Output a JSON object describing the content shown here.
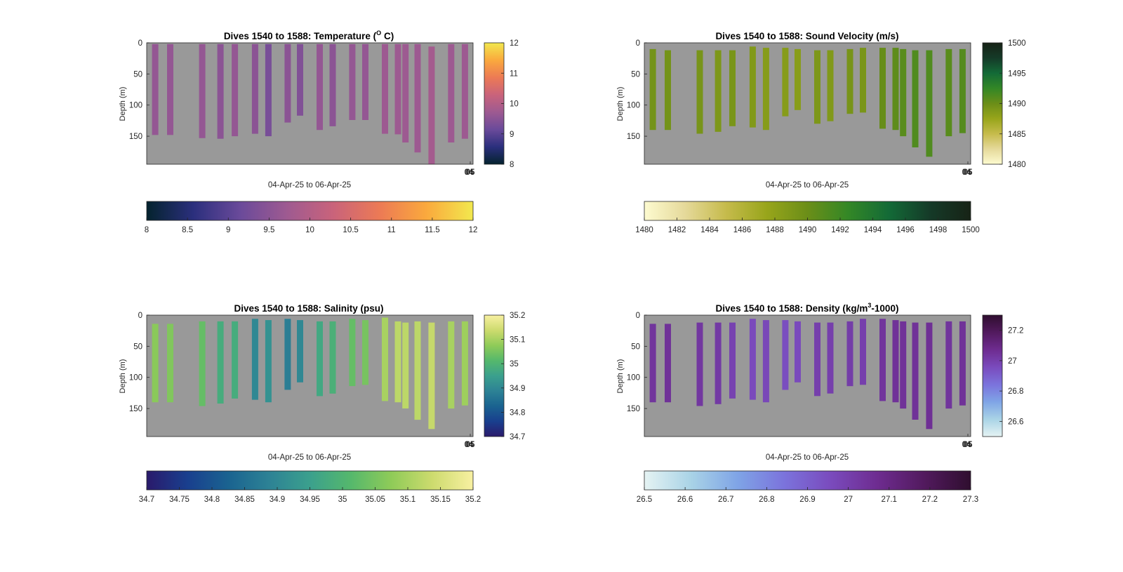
{
  "figure": {
    "background": "#ffffff",
    "plot_background": "#999999"
  },
  "chart_data": [
    {
      "type": "heatmap",
      "title": "Dives 1540 to 1588: Temperature (",
      "title_sup": "O",
      "title_end": " C)",
      "xlabel": "04-Apr-25 to 06-Apr-25",
      "ylabel": "Depth (m)",
      "x_tick_label": "04",
      "x_tick_label_overlap": "05",
      "ylim": [
        0,
        195
      ],
      "y_ticks": [
        "0",
        "50",
        "100",
        "150"
      ],
      "y_tick_values": [
        0,
        50,
        100,
        150
      ],
      "clim": [
        8,
        12
      ],
      "colormap": "thermal",
      "colorbar_side_ticks": [
        "8",
        "9",
        "10",
        "11",
        "12"
      ],
      "colorbar_side_values": [
        8,
        9,
        10,
        11,
        12
      ],
      "colorbar_bottom_ticks": [
        "8",
        "8.5",
        "9",
        "9.5",
        "10",
        "10.5",
        "11",
        "11.5",
        "12"
      ],
      "colorbar_bottom_values": [
        8,
        8.5,
        9,
        9.5,
        10,
        10.5,
        11,
        11.5,
        12
      ],
      "profiles": [
        {
          "x": 0.026,
          "top": 2,
          "bottom": 148,
          "value": 9.6
        },
        {
          "x": 0.072,
          "top": 2,
          "bottom": 148,
          "value": 9.6
        },
        {
          "x": 0.17,
          "top": 2,
          "bottom": 153,
          "value": 9.6
        },
        {
          "x": 0.226,
          "top": 2,
          "bottom": 154,
          "value": 9.5
        },
        {
          "x": 0.27,
          "top": 2,
          "bottom": 150,
          "value": 9.6
        },
        {
          "x": 0.332,
          "top": 2,
          "bottom": 146,
          "value": 9.5
        },
        {
          "x": 0.373,
          "top": 2,
          "bottom": 150,
          "value": 9.3
        },
        {
          "x": 0.432,
          "top": 2,
          "bottom": 128,
          "value": 9.5
        },
        {
          "x": 0.47,
          "top": 2,
          "bottom": 117,
          "value": 9.4
        },
        {
          "x": 0.53,
          "top": 2,
          "bottom": 140,
          "value": 9.6
        },
        {
          "x": 0.57,
          "top": 2,
          "bottom": 134,
          "value": 9.5
        },
        {
          "x": 0.63,
          "top": 2,
          "bottom": 124,
          "value": 9.6
        },
        {
          "x": 0.67,
          "top": 2,
          "bottom": 124,
          "value": 9.6
        },
        {
          "x": 0.73,
          "top": 2,
          "bottom": 146,
          "value": 9.7
        },
        {
          "x": 0.77,
          "top": 2,
          "bottom": 147,
          "value": 9.7
        },
        {
          "x": 0.793,
          "top": 2,
          "bottom": 160,
          "value": 9.7
        },
        {
          "x": 0.83,
          "top": 2,
          "bottom": 176,
          "value": 9.7
        },
        {
          "x": 0.873,
          "top": 6,
          "bottom": 195,
          "value": 9.8
        },
        {
          "x": 0.933,
          "top": 2,
          "bottom": 160,
          "value": 9.7
        },
        {
          "x": 0.975,
          "top": 2,
          "bottom": 154,
          "value": 9.7
        }
      ]
    },
    {
      "type": "heatmap",
      "title": "Dives 1540 to 1588: Sound Velocity (m/s)",
      "title_sup": "",
      "title_end": "",
      "xlabel": "04-Apr-25 to 06-Apr-25",
      "ylabel": "Depth (m)",
      "x_tick_label": "04",
      "x_tick_label_overlap": "05",
      "ylim": [
        0,
        195
      ],
      "y_ticks": [
        "0",
        "50",
        "100",
        "150"
      ],
      "y_tick_values": [
        0,
        50,
        100,
        150
      ],
      "clim": [
        1480,
        1500
      ],
      "colormap": "speed",
      "colorbar_side_ticks": [
        "1480",
        "1485",
        "1490",
        "1495",
        "1500"
      ],
      "colorbar_side_values": [
        1480,
        1485,
        1490,
        1495,
        1500
      ],
      "colorbar_bottom_ticks": [
        "1480",
        "1482",
        "1484",
        "1486",
        "1488",
        "1490",
        "1492",
        "1494",
        "1496",
        "1498",
        "1500"
      ],
      "colorbar_bottom_values": [
        1480,
        1482,
        1484,
        1486,
        1488,
        1490,
        1492,
        1494,
        1496,
        1498,
        1500
      ],
      "profiles": [
        {
          "x": 0.026,
          "top": 10,
          "bottom": 140,
          "value": 1489.5
        },
        {
          "x": 0.072,
          "top": 12,
          "bottom": 140,
          "value": 1489.5
        },
        {
          "x": 0.17,
          "top": 12,
          "bottom": 146,
          "value": 1489.3
        },
        {
          "x": 0.226,
          "top": 12,
          "bottom": 143,
          "value": 1489.0
        },
        {
          "x": 0.27,
          "top": 12,
          "bottom": 134,
          "value": 1489.2
        },
        {
          "x": 0.332,
          "top": 6,
          "bottom": 136,
          "value": 1488.8
        },
        {
          "x": 0.373,
          "top": 8,
          "bottom": 140,
          "value": 1488.5
        },
        {
          "x": 0.432,
          "top": 8,
          "bottom": 118,
          "value": 1488.5
        },
        {
          "x": 0.47,
          "top": 10,
          "bottom": 108,
          "value": 1488.4
        },
        {
          "x": 0.53,
          "top": 12,
          "bottom": 130,
          "value": 1489.0
        },
        {
          "x": 0.57,
          "top": 12,
          "bottom": 126,
          "value": 1488.8
        },
        {
          "x": 0.63,
          "top": 10,
          "bottom": 114,
          "value": 1489.3
        },
        {
          "x": 0.67,
          "top": 8,
          "bottom": 112,
          "value": 1489.2
        },
        {
          "x": 0.73,
          "top": 8,
          "bottom": 138,
          "value": 1490.2
        },
        {
          "x": 0.77,
          "top": 8,
          "bottom": 140,
          "value": 1490.6
        },
        {
          "x": 0.793,
          "top": 10,
          "bottom": 150,
          "value": 1490.8
        },
        {
          "x": 0.83,
          "top": 12,
          "bottom": 168,
          "value": 1491.2
        },
        {
          "x": 0.873,
          "top": 12,
          "bottom": 183,
          "value": 1491.2
        },
        {
          "x": 0.933,
          "top": 10,
          "bottom": 150,
          "value": 1490.8
        },
        {
          "x": 0.975,
          "top": 10,
          "bottom": 145,
          "value": 1491.0
        }
      ]
    },
    {
      "type": "heatmap",
      "title": "Dives 1540 to 1588: Salinity (psu)",
      "title_sup": "",
      "title_end": "",
      "xlabel": "04-Apr-25 to 06-Apr-25",
      "ylabel": "Depth (m)",
      "x_tick_label": "04",
      "x_tick_label_overlap": "05",
      "ylim": [
        0,
        195
      ],
      "y_ticks": [
        "0",
        "50",
        "100",
        "150"
      ],
      "y_tick_values": [
        0,
        50,
        100,
        150
      ],
      "clim": [
        34.7,
        35.2
      ],
      "colormap": "haline",
      "colorbar_side_ticks": [
        "34.7",
        "34.8",
        "34.9",
        "35",
        "35.1",
        "35.2"
      ],
      "colorbar_side_values": [
        34.7,
        34.8,
        34.9,
        35.0,
        35.1,
        35.2
      ],
      "colorbar_bottom_ticks": [
        "34.7",
        "34.75",
        "34.8",
        "34.85",
        "34.9",
        "34.95",
        "35",
        "35.05",
        "35.1",
        "35.15",
        "35.2"
      ],
      "colorbar_bottom_values": [
        34.7,
        34.75,
        34.8,
        34.85,
        34.9,
        34.95,
        35.0,
        35.05,
        35.1,
        35.15,
        35.2
      ],
      "profiles": [
        {
          "x": 0.026,
          "top": 14,
          "bottom": 140,
          "value": 35.07
        },
        {
          "x": 0.072,
          "top": 14,
          "bottom": 140,
          "value": 35.06
        },
        {
          "x": 0.17,
          "top": 10,
          "bottom": 146,
          "value": 35.03
        },
        {
          "x": 0.226,
          "top": 10,
          "bottom": 142,
          "value": 34.98
        },
        {
          "x": 0.27,
          "top": 10,
          "bottom": 134,
          "value": 34.98
        },
        {
          "x": 0.332,
          "top": 6,
          "bottom": 136,
          "value": 34.9
        },
        {
          "x": 0.373,
          "top": 8,
          "bottom": 140,
          "value": 34.92
        },
        {
          "x": 0.432,
          "top": 6,
          "bottom": 120,
          "value": 34.88
        },
        {
          "x": 0.47,
          "top": 8,
          "bottom": 108,
          "value": 34.9
        },
        {
          "x": 0.53,
          "top": 10,
          "bottom": 130,
          "value": 34.97
        },
        {
          "x": 0.57,
          "top": 10,
          "bottom": 126,
          "value": 34.99
        },
        {
          "x": 0.63,
          "top": 6,
          "bottom": 114,
          "value": 35.03
        },
        {
          "x": 0.67,
          "top": 8,
          "bottom": 112,
          "value": 35.05
        },
        {
          "x": 0.73,
          "top": 4,
          "bottom": 138,
          "value": 35.1
        },
        {
          "x": 0.77,
          "top": 10,
          "bottom": 140,
          "value": 35.12
        },
        {
          "x": 0.793,
          "top": 12,
          "bottom": 150,
          "value": 35.12
        },
        {
          "x": 0.83,
          "top": 10,
          "bottom": 168,
          "value": 35.12
        },
        {
          "x": 0.873,
          "top": 12,
          "bottom": 183,
          "value": 35.13
        },
        {
          "x": 0.933,
          "top": 10,
          "bottom": 150,
          "value": 35.1
        },
        {
          "x": 0.975,
          "top": 10,
          "bottom": 145,
          "value": 35.09
        }
      ]
    },
    {
      "type": "heatmap",
      "title": "Dives 1540 to 1588: Density (kg/m",
      "title_sup": "3",
      "title_end": "-1000)",
      "xlabel": "04-Apr-25 to 06-Apr-25",
      "ylabel": "Depth (m)",
      "x_tick_label": "04",
      "x_tick_label_overlap": "05",
      "ylim": [
        0,
        195
      ],
      "y_ticks": [
        "0",
        "50",
        "100",
        "150"
      ],
      "y_tick_values": [
        0,
        50,
        100,
        150
      ],
      "clim": [
        26.5,
        27.3
      ],
      "colormap": "dense",
      "colorbar_side_ticks": [
        "26.6",
        "26.8",
        "27",
        "27.2"
      ],
      "colorbar_side_values": [
        26.6,
        26.8,
        27.0,
        27.2
      ],
      "colorbar_bottom_ticks": [
        "26.5",
        "26.6",
        "26.7",
        "26.8",
        "26.9",
        "27",
        "27.1",
        "27.2",
        "27.3"
      ],
      "colorbar_bottom_values": [
        26.5,
        26.6,
        26.7,
        26.8,
        26.9,
        27.0,
        27.1,
        27.2,
        27.3
      ],
      "profiles": [
        {
          "x": 0.026,
          "top": 14,
          "bottom": 140,
          "value": 27.04
        },
        {
          "x": 0.072,
          "top": 14,
          "bottom": 140,
          "value": 27.05
        },
        {
          "x": 0.17,
          "top": 12,
          "bottom": 146,
          "value": 27.03
        },
        {
          "x": 0.226,
          "top": 12,
          "bottom": 143,
          "value": 27.02
        },
        {
          "x": 0.27,
          "top": 12,
          "bottom": 134,
          "value": 26.99
        },
        {
          "x": 0.332,
          "top": 6,
          "bottom": 136,
          "value": 26.96
        },
        {
          "x": 0.373,
          "top": 8,
          "bottom": 140,
          "value": 26.97
        },
        {
          "x": 0.432,
          "top": 8,
          "bottom": 120,
          "value": 26.95
        },
        {
          "x": 0.47,
          "top": 10,
          "bottom": 108,
          "value": 26.96
        },
        {
          "x": 0.53,
          "top": 12,
          "bottom": 130,
          "value": 27.0
        },
        {
          "x": 0.57,
          "top": 12,
          "bottom": 126,
          "value": 27.0
        },
        {
          "x": 0.63,
          "top": 10,
          "bottom": 114,
          "value": 27.01
        },
        {
          "x": 0.67,
          "top": 6,
          "bottom": 112,
          "value": 27.0
        },
        {
          "x": 0.73,
          "top": 6,
          "bottom": 138,
          "value": 27.04
        },
        {
          "x": 0.77,
          "top": 8,
          "bottom": 140,
          "value": 27.05
        },
        {
          "x": 0.793,
          "top": 10,
          "bottom": 150,
          "value": 27.05
        },
        {
          "x": 0.83,
          "top": 12,
          "bottom": 168,
          "value": 27.05
        },
        {
          "x": 0.873,
          "top": 12,
          "bottom": 183,
          "value": 27.06
        },
        {
          "x": 0.933,
          "top": 10,
          "bottom": 150,
          "value": 27.04
        },
        {
          "x": 0.975,
          "top": 10,
          "bottom": 145,
          "value": 27.05
        }
      ]
    }
  ],
  "colormaps": {
    "thermal": [
      "#04232e",
      "#2b2f7d",
      "#6a4a9a",
      "#9e5a91",
      "#c9637b",
      "#ec7a55",
      "#faa93d",
      "#f2e84e"
    ],
    "speed": [
      "#fdfbd0",
      "#e5d99a",
      "#c6bb4c",
      "#98a51b",
      "#6b8e18",
      "#338726",
      "#136a37",
      "#153a28",
      "#172316"
    ],
    "haline": [
      "#2a1a6b",
      "#193f8e",
      "#1a6390",
      "#2d8295",
      "#3ba08d",
      "#55b86c",
      "#8fcb58",
      "#cddb6e",
      "#f8f0a1"
    ],
    "dense": [
      "#e5f3f3",
      "#a9d3e6",
      "#7fa4e6",
      "#7b73dc",
      "#7a4bbd",
      "#6e2c90",
      "#521a5e",
      "#2f0e2f"
    ]
  }
}
